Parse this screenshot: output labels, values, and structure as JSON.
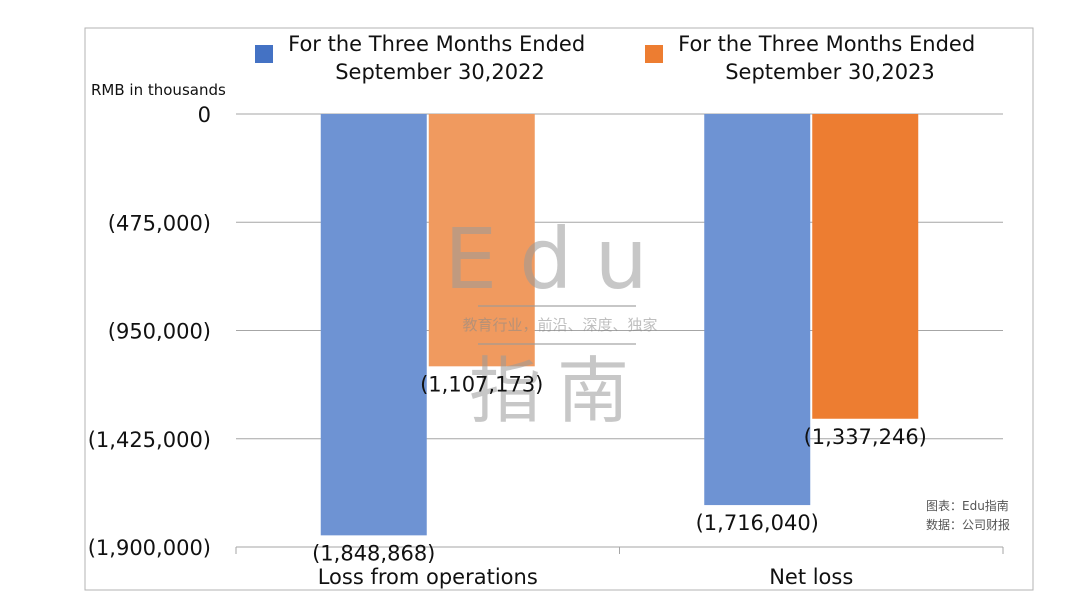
{
  "chart_data": {
    "type": "bar",
    "unit_label": "RMB in thousands",
    "categories": [
      "Loss from operations",
      "Net loss"
    ],
    "series": [
      {
        "name": "For the Three Months Ended September 30,2022",
        "color": "#4472c4",
        "bar_color": "#6e93d3",
        "values": [
          -1848868,
          -1716040
        ],
        "labels": [
          "(1,848,868)",
          "(1,716,040)"
        ]
      },
      {
        "name": "For the Three Months Ended September 30,2023",
        "color": "#ed7d31",
        "bar_color": "#f09a5f",
        "bar_color_alt": "#ed7d31",
        "values": [
          -1107173,
          -1337246
        ],
        "labels": [
          "(1,107,173)",
          "(1,337,246)"
        ]
      }
    ],
    "legend": {
      "placement": "top",
      "lines": [
        [
          "For the Three Months Ended",
          "September 30,2022"
        ],
        [
          "For the Three Months Ended",
          "September 30,2023"
        ]
      ]
    },
    "ylim": [
      -1900000,
      0
    ],
    "yticks": [
      0,
      -475000,
      -950000,
      -1425000,
      -1900000
    ],
    "ytick_labels": [
      "0",
      "(475,000)",
      "(950,000)",
      "(1,425,000)",
      "(1,900,000)"
    ],
    "grid": true
  },
  "watermark": {
    "word": "Edu",
    "tagline": "教育行业，前沿、深度、独家",
    "hanzi": "指南"
  },
  "credits": {
    "line1": "图表：Edu指南",
    "line2": "数据：公司财报"
  }
}
